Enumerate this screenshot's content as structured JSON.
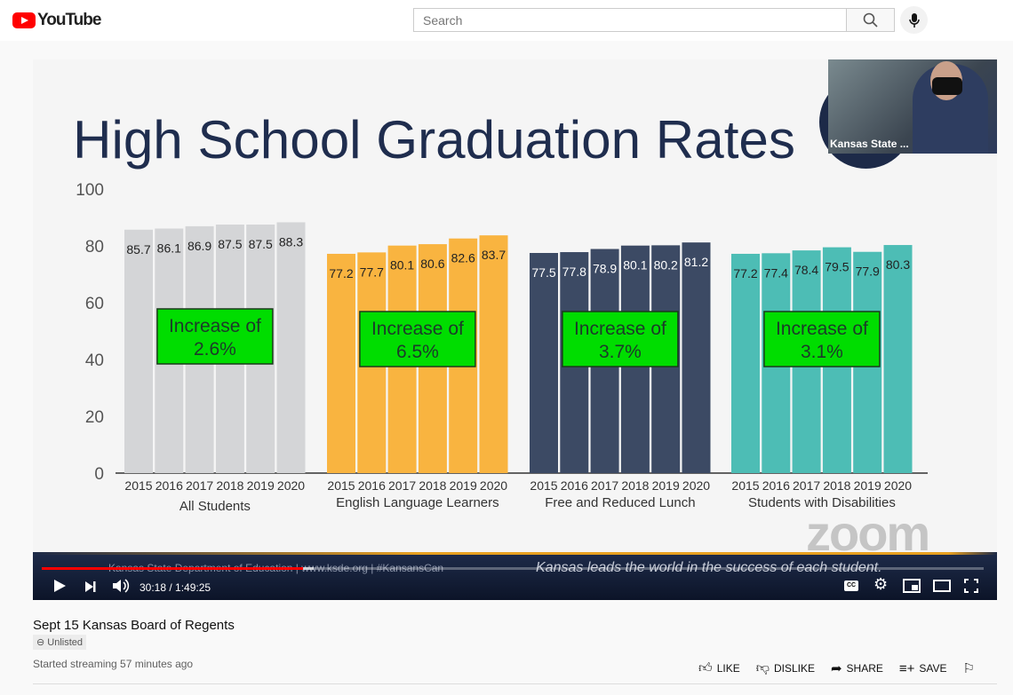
{
  "header": {
    "logo": "YouTube",
    "search_placeholder": "Search"
  },
  "video": {
    "cam_label": "Kansas State ...",
    "footer_left": "Kansas State Department of Education | www.ksde.org | #KansansCan",
    "footer_right": "Kansas leads the world in the success of each student.",
    "watermark": "zoom",
    "time": "30:18 / 1:49:25",
    "progress_percent": 27.7
  },
  "chart_data": {
    "type": "bar",
    "title": "High School Graduation Rates",
    "ylim": [
      0,
      100
    ],
    "yticks": [
      0,
      20,
      40,
      60,
      80,
      100
    ],
    "categories": [
      "2015",
      "2016",
      "2017",
      "2018",
      "2019",
      "2020"
    ],
    "groups": [
      {
        "name": "All Students",
        "values": [
          85.7,
          86.1,
          86.9,
          87.5,
          87.5,
          88.3
        ],
        "color": "#d4d5d7",
        "annotation": [
          "Increase of",
          "2.6%"
        ]
      },
      {
        "name": "English Language Learners",
        "values": [
          77.2,
          77.7,
          80.1,
          80.6,
          82.6,
          83.7
        ],
        "color": "#f9b440",
        "annotation": [
          "Increase of",
          "6.5%"
        ]
      },
      {
        "name": "Free and Reduced Lunch",
        "values": [
          77.5,
          77.8,
          78.9,
          80.1,
          80.2,
          81.2
        ],
        "color": "#3c4a64",
        "annotation": [
          "Increase of",
          "3.7%"
        ]
      },
      {
        "name": "Students with Disabilities",
        "values": [
          77.2,
          77.4,
          78.4,
          79.5,
          77.9,
          80.3
        ],
        "color": "#4dbdb5",
        "annotation": [
          "Increase of",
          "3.1%"
        ]
      }
    ]
  },
  "info": {
    "title": "Sept 15 Kansas Board of Regents",
    "badge": "Unlisted",
    "meta": "Started streaming 57 minutes ago"
  },
  "actions": {
    "like": "LIKE",
    "dislike": "DISLIKE",
    "share": "SHARE",
    "save": "SAVE"
  }
}
